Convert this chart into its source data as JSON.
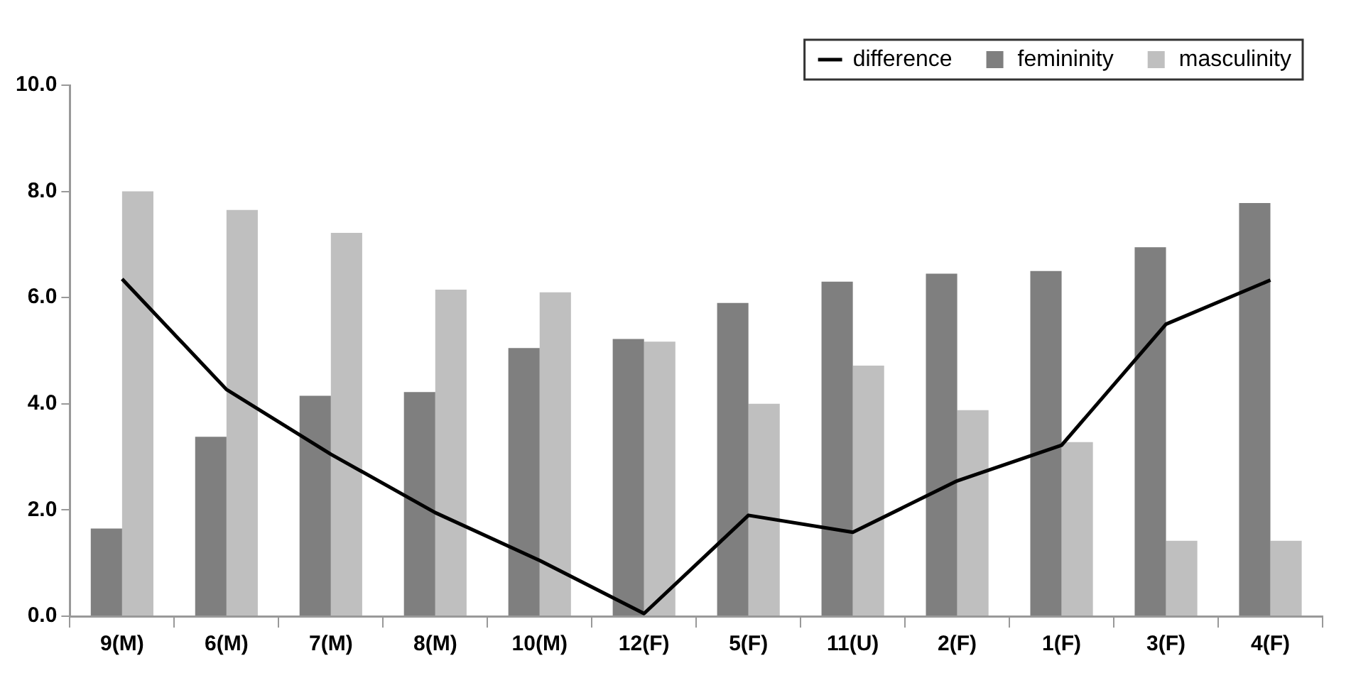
{
  "chart_data": {
    "type": "bar",
    "categories": [
      "9(M)",
      "6(M)",
      "7(M)",
      "8(M)",
      "10(M)",
      "12(F)",
      "5(F)",
      "11(U)",
      "2(F)",
      "1(F)",
      "3(F)",
      "4(F)"
    ],
    "series": [
      {
        "name": "femininity",
        "color": "#7f7f7f",
        "values": [
          1.65,
          3.38,
          4.15,
          4.22,
          5.05,
          5.22,
          5.9,
          6.3,
          6.45,
          6.5,
          6.95,
          7.78
        ]
      },
      {
        "name": "masculinity",
        "color": "#bfbfbf",
        "values": [
          8.0,
          7.65,
          7.22,
          6.15,
          6.1,
          5.17,
          4.0,
          4.72,
          3.88,
          3.28,
          1.42,
          1.42
        ]
      },
      {
        "name": "difference",
        "type": "line",
        "color": "#000000",
        "values": [
          6.35,
          4.27,
          3.05,
          1.95,
          1.05,
          0.05,
          1.9,
          1.58,
          2.55,
          3.22,
          5.5,
          6.33
        ]
      }
    ],
    "ylim": [
      0,
      10
    ],
    "yticks": [
      {
        "value": 0,
        "label": "0.0"
      },
      {
        "value": 2,
        "label": "2.0"
      },
      {
        "value": 4,
        "label": "4.0"
      },
      {
        "value": 6,
        "label": "6.0"
      },
      {
        "value": 8,
        "label": "8.0"
      },
      {
        "value": 10,
        "label": "10.0"
      }
    ],
    "grid": false,
    "legend": "top right",
    "marker": "none",
    "line_style": "solid"
  }
}
